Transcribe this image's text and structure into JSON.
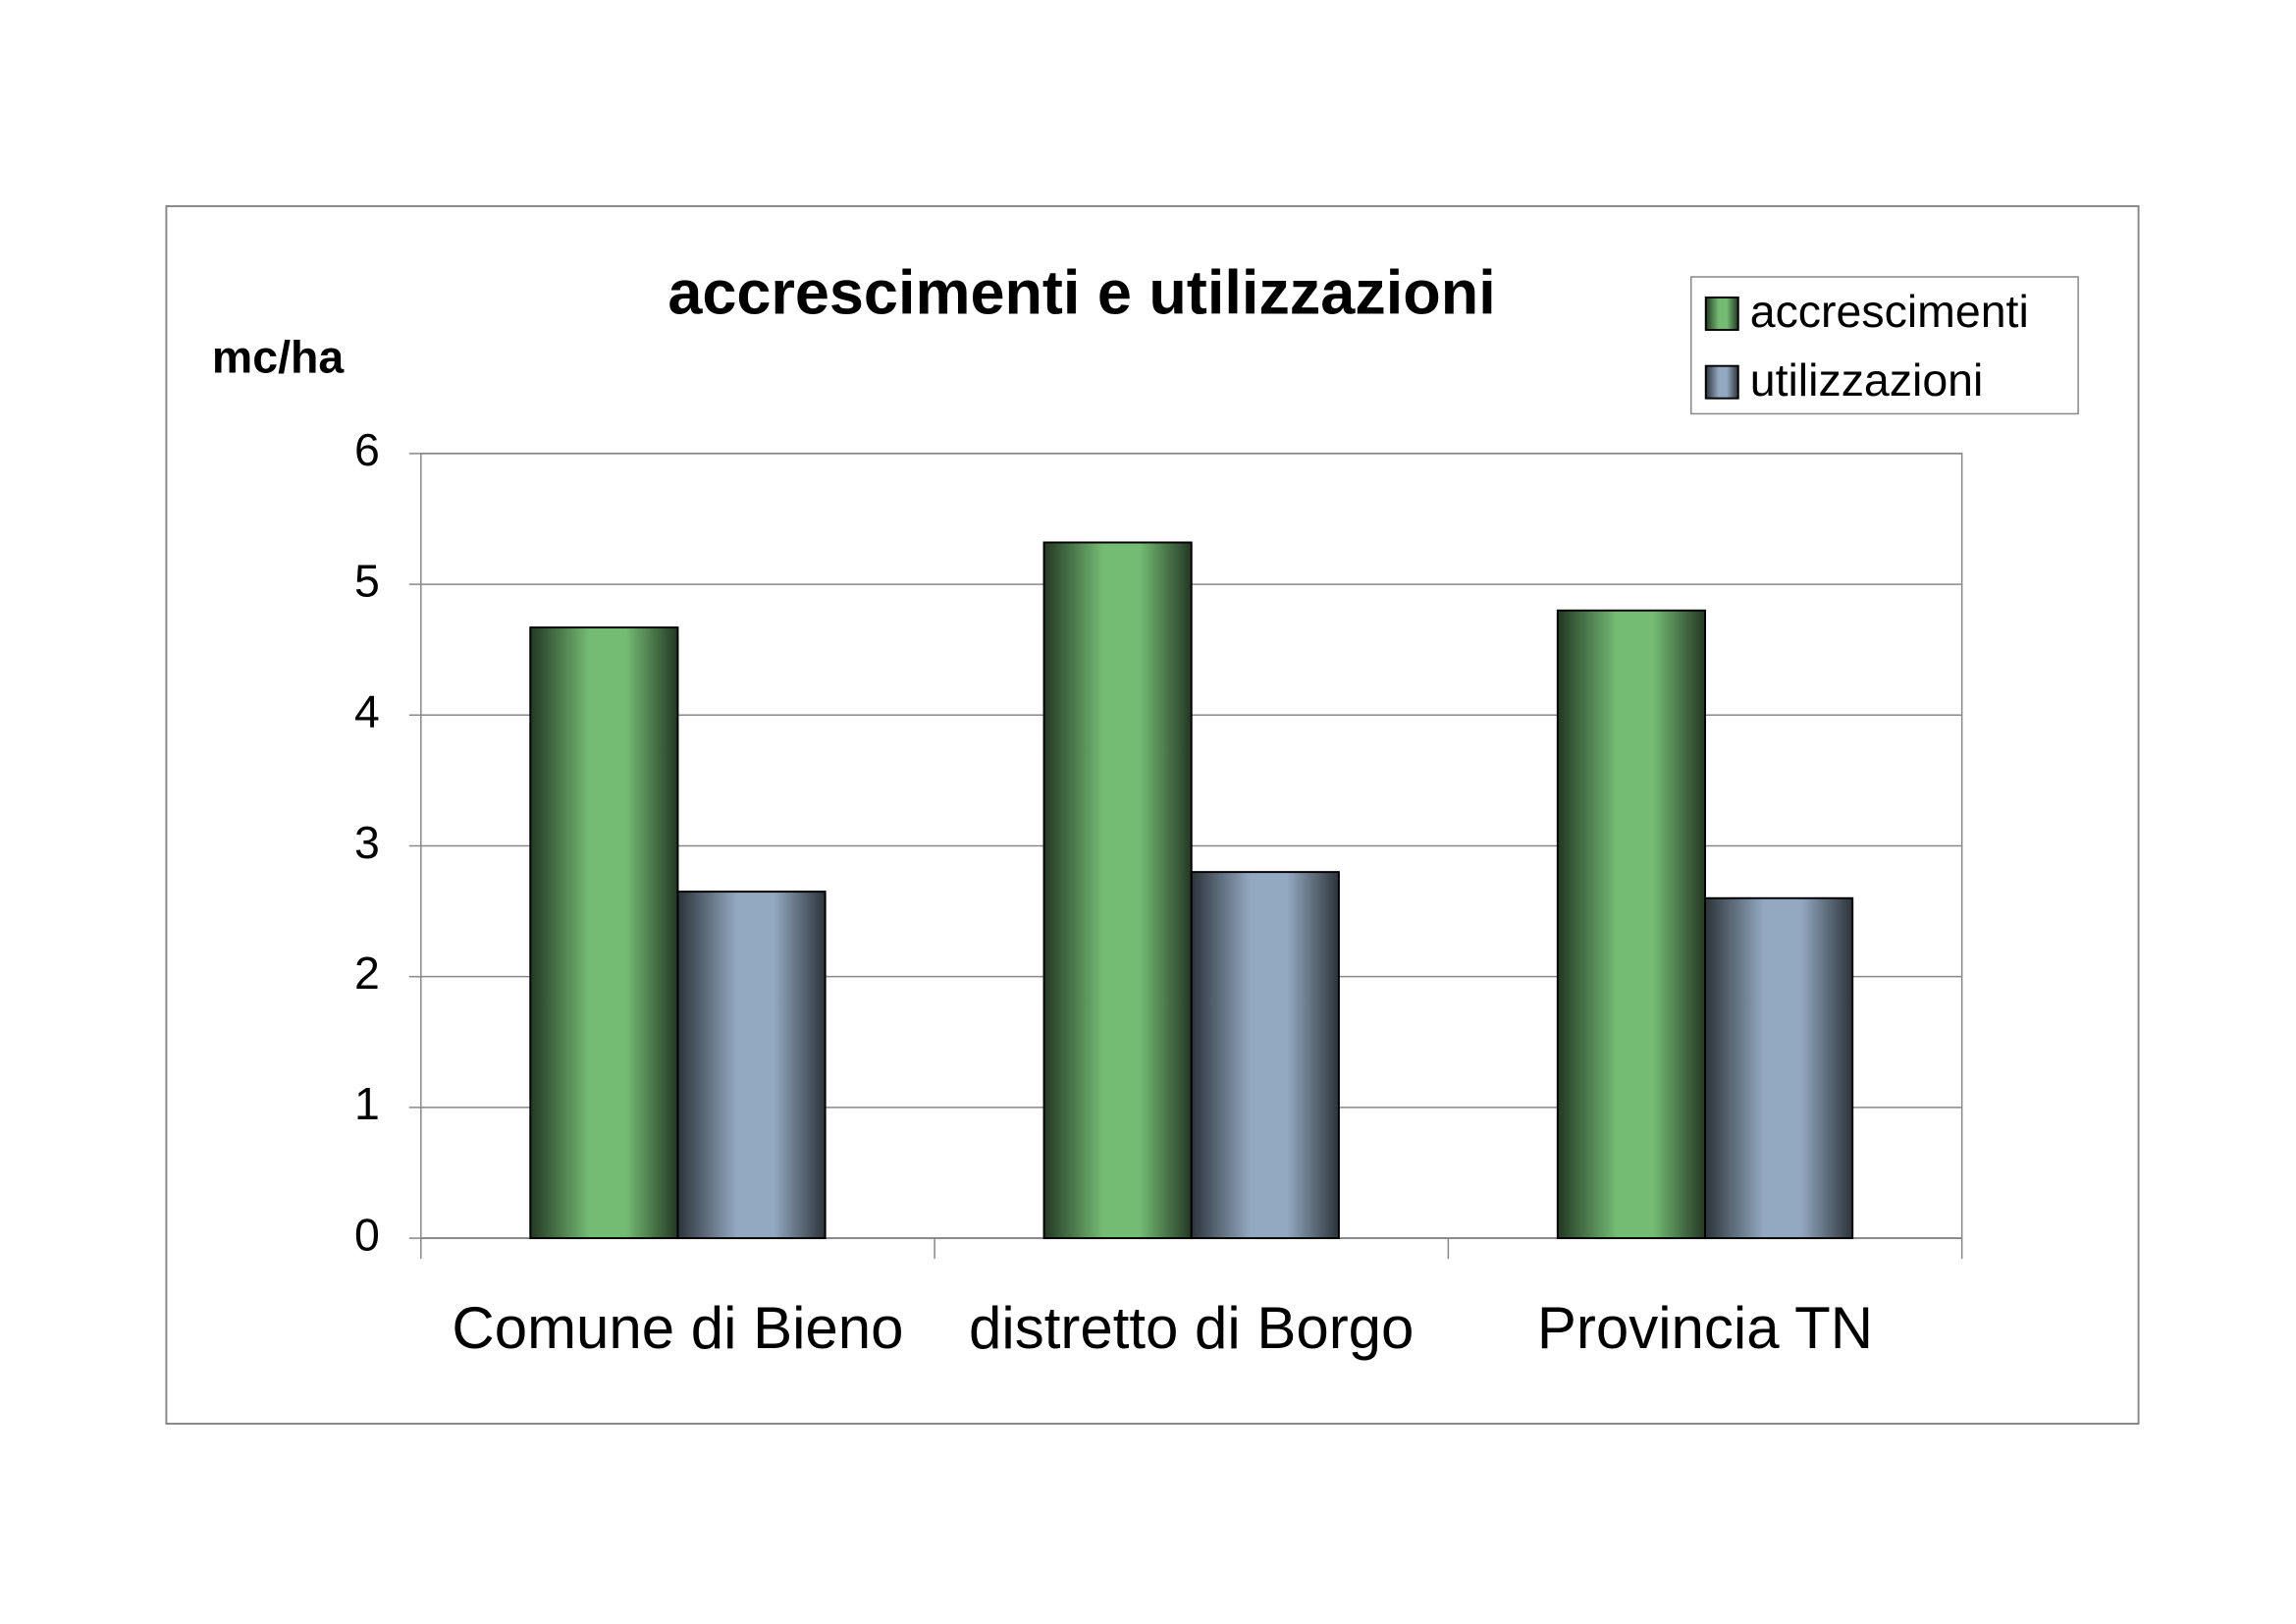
{
  "chart_data": {
    "type": "bar",
    "title": "accrescimenti e utilizzazioni",
    "y_label": "mc/ha",
    "categories": [
      "Comune di Bieno",
      "distretto di Borgo",
      "Provincia TN"
    ],
    "series": [
      {
        "name": "accrescimenti",
        "color": "#74bb74",
        "values": [
          4.67,
          5.32,
          4.8
        ]
      },
      {
        "name": "utilizzazioni",
        "color": "#93a9c1",
        "values": [
          2.65,
          2.8,
          2.6
        ]
      }
    ],
    "ylim": [
      0,
      6
    ],
    "yticks": [
      0,
      1,
      2,
      3,
      4,
      5,
      6
    ],
    "grid": true,
    "legend": "top-right"
  }
}
